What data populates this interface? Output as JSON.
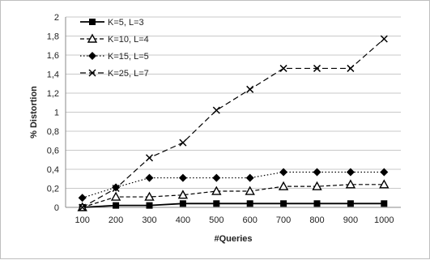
{
  "chart_data": {
    "type": "line",
    "title": "",
    "xlabel": "#Queries",
    "ylabel": "% Distortion",
    "categories": [
      "100",
      "200",
      "300",
      "400",
      "500",
      "600",
      "700",
      "800",
      "900",
      "1000"
    ],
    "x_tick_labels": [
      "100",
      "200",
      "300",
      "400",
      "500",
      "600",
      "700",
      "800",
      "900",
      "1000"
    ],
    "ylim": [
      0,
      2
    ],
    "y_tick_labels": [
      "0",
      "0,2",
      "0,4",
      "0,6",
      "0,8",
      "1",
      "1,2",
      "1,4",
      "1,6",
      "1,8",
      "2"
    ],
    "grid": "horizontal",
    "legend_position": "top-left",
    "series": [
      {
        "name": "K=5, L=3",
        "marker": "square",
        "dash": "solid",
        "color": "#000000",
        "values": [
          0.0,
          0.02,
          0.02,
          0.04,
          0.04,
          0.04,
          0.04,
          0.04,
          0.04,
          0.04
        ]
      },
      {
        "name": "K=10, L=4",
        "marker": "triangle",
        "dash": "dash",
        "color": "#000000",
        "values": [
          0.0,
          0.11,
          0.11,
          0.13,
          0.17,
          0.17,
          0.22,
          0.22,
          0.24,
          0.24
        ]
      },
      {
        "name": "K=15, L=5",
        "marker": "diamond",
        "dash": "dot",
        "color": "#000000",
        "values": [
          0.1,
          0.21,
          0.31,
          0.31,
          0.31,
          0.31,
          0.37,
          0.37,
          0.37,
          0.37
        ]
      },
      {
        "name": "K=25, L=7",
        "marker": "x",
        "dash": "longdash",
        "color": "#000000",
        "values": [
          0.0,
          0.2,
          0.52,
          0.68,
          1.02,
          1.24,
          1.46,
          1.46,
          1.46,
          1.77
        ]
      }
    ]
  }
}
